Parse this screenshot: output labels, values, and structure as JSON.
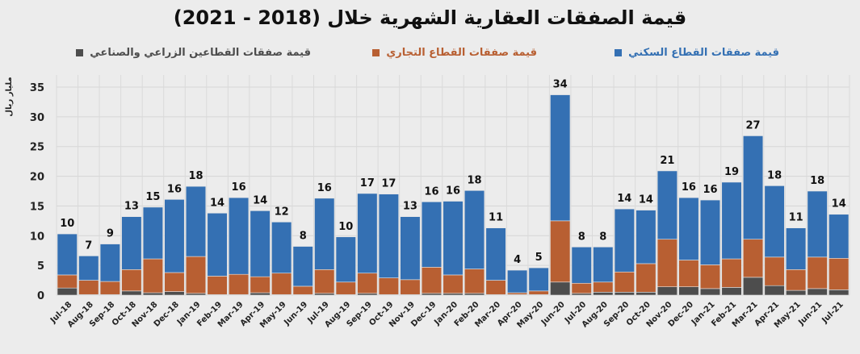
{
  "chart_data": {
    "type": "bar",
    "stacked": true,
    "title": "قيمة الصفقات العقارية الشهرية خلال (2018 - 2021)",
    "ylabel": "مليار ريال",
    "xlabel": "",
    "ylim": [
      0,
      35
    ],
    "yticks": [
      0,
      5,
      10,
      15,
      20,
      25,
      30,
      35
    ],
    "grid": true,
    "legend_position": "top",
    "categories": [
      "Jul-18",
      "Aug-18",
      "Sep-18",
      "Oct-18",
      "Nov-18",
      "Dec-18",
      "Jan-19",
      "Feb-19",
      "Mar-19",
      "Apr-19",
      "May-19",
      "Jun-19",
      "Jul-19",
      "Aug-19",
      "Sep-19",
      "Oct-19",
      "Nov-19",
      "Dec-19",
      "Jan-20",
      "Feb-20",
      "Mar-20",
      "Apr-20",
      "May-20",
      "Jun-20",
      "Jul-20",
      "Aug-20",
      "Sep-20",
      "Oct-20",
      "Nov-20",
      "Dec-20",
      "Jan-21",
      "Feb-21",
      "Mar-21",
      "Apr-21",
      "May-21",
      "Jun-21",
      "Jul-21"
    ],
    "series": [
      {
        "name": "قيمة صفقات القطاعين الزراعي والصناعي",
        "color": "#4d4d4d",
        "values": [
          1.2,
          0.1,
          0.1,
          0.7,
          0.4,
          0.6,
          0.3,
          0.1,
          0.1,
          0.4,
          0.1,
          0.1,
          0.3,
          0.1,
          0.3,
          0.1,
          0.1,
          0.3,
          0.3,
          0.3,
          0.1,
          0.1,
          0.1,
          2.2,
          0.3,
          0.5,
          0.5,
          0.5,
          1.4,
          1.4,
          1.1,
          1.3,
          3.0,
          1.6,
          0.8,
          1.1,
          0.9
        ]
      },
      {
        "name": "قيمة صفقات القطاع التجاري",
        "color": "#b85f32",
        "values": [
          2.2,
          2.4,
          2.2,
          3.6,
          5.7,
          3.2,
          6.2,
          3.1,
          3.4,
          2.7,
          3.6,
          1.4,
          4.0,
          2.1,
          3.4,
          2.8,
          2.5,
          4.4,
          3.1,
          4.1,
          2.4,
          0.3,
          0.6,
          10.3,
          1.7,
          1.7,
          3.4,
          4.8,
          8.0,
          4.5,
          4.0,
          4.8,
          6.4,
          4.8,
          3.5,
          5.3,
          5.3
        ]
      },
      {
        "name": "قيمة صفقات القطاع السكني",
        "color": "#3470b3",
        "values": [
          6.9,
          4.1,
          6.3,
          8.9,
          8.7,
          12.3,
          11.8,
          10.6,
          12.9,
          11.1,
          8.6,
          6.7,
          12.0,
          7.6,
          13.4,
          14.1,
          10.6,
          11.0,
          12.4,
          13.2,
          8.8,
          3.8,
          3.9,
          21.2,
          6.1,
          5.9,
          10.6,
          9.0,
          11.5,
          10.5,
          10.9,
          12.9,
          17.4,
          12.0,
          7.0,
          11.1,
          7.4
        ]
      }
    ],
    "data_labels": [
      "10",
      "7",
      "9",
      "13",
      "15",
      "16",
      "18",
      "14",
      "16",
      "14",
      "12",
      "8",
      "16",
      "10",
      "17",
      "17",
      "13",
      "16",
      "16",
      "18",
      "11",
      "4",
      "5",
      "34",
      "8",
      "8",
      "14",
      "14",
      "21",
      "16",
      "16",
      "19",
      "27",
      "18",
      "11",
      "18",
      "14"
    ]
  }
}
